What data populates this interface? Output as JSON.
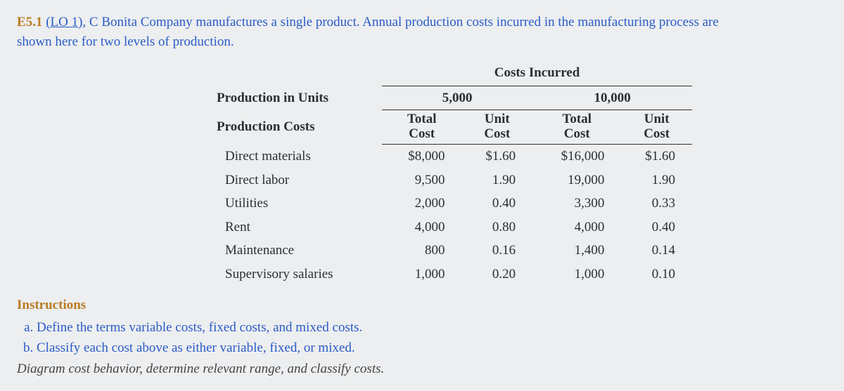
{
  "head": {
    "ex_no": "E5.1",
    "lo": "(LO 1)",
    "company": ", C Bonita Company",
    "rest": " manufactures a single product. Annual production costs incurred in the manufacturing process are",
    "line2": "shown here for two levels of production."
  },
  "table": {
    "type": "table",
    "costs_incurred": "Costs Incurred",
    "prod_in_units": "Production in Units",
    "levels": [
      "5,000",
      "10,000"
    ],
    "prod_costs": "Production Costs",
    "subheaders": {
      "total": "Total\nCost",
      "unit": "Unit\nCost"
    },
    "columns_align": [
      "left",
      "right",
      "right",
      "right",
      "right"
    ],
    "rows": [
      {
        "label": "Direct materials",
        "v": [
          "$8,000",
          "$1.60",
          "$16,000",
          "$1.60"
        ]
      },
      {
        "label": "Direct labor",
        "v": [
          "9,500",
          "1.90",
          "19,000",
          "1.90"
        ]
      },
      {
        "label": "Utilities",
        "v": [
          "2,000",
          "0.40",
          "3,300",
          "0.33"
        ]
      },
      {
        "label": "Rent",
        "v": [
          "4,000",
          "0.80",
          "4,000",
          "0.40"
        ]
      },
      {
        "label": "Maintenance",
        "v": [
          "800",
          "0.16",
          "1,400",
          "0.14"
        ]
      },
      {
        "label": "Supervisory salaries",
        "v": [
          "1,000",
          "0.20",
          "1,000",
          "0.10"
        ]
      }
    ],
    "background_color": "#eceef0",
    "border_color": "#333333",
    "text_color": "#2a2f36",
    "font_family": "Georgia",
    "body_fontsize": 19
  },
  "instructions": {
    "heading": "Instructions",
    "items": [
      "Define the terms variable costs, fixed costs, and mixed costs.",
      "Classify each cost above as either variable, fixed, or mixed."
    ],
    "markers": [
      "a.",
      "b."
    ],
    "note": "Diagram cost behavior, determine relevant range, and classify costs."
  },
  "colors": {
    "accent_orange": "#b97c23",
    "accent_blue": "#2a5bc6",
    "background": "#eceef0"
  }
}
